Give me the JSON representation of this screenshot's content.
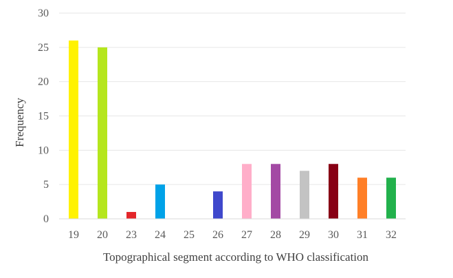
{
  "chart_data": {
    "type": "bar",
    "title": "",
    "xlabel": "Topographical segment according to WHO classification",
    "ylabel": "Frequency",
    "categories": [
      "19",
      "20",
      "23",
      "24",
      "25",
      "26",
      "27",
      "28",
      "29",
      "30",
      "31",
      "32"
    ],
    "values": [
      26,
      25,
      1,
      5,
      0,
      4,
      8,
      8,
      7,
      8,
      6,
      6
    ],
    "colors": [
      "#FFF200",
      "#B5E61D",
      "#E3262A",
      "#00A2E8",
      "#FFFFFF",
      "#3F48CC",
      "#FFAEC9",
      "#A349A4",
      "#C3C3C3",
      "#880015",
      "#FF7F27",
      "#22B14C"
    ],
    "ylim": [
      0,
      30
    ],
    "yticks": [
      0,
      5,
      10,
      15,
      20,
      25,
      30
    ],
    "grid": true,
    "legend": "none"
  }
}
